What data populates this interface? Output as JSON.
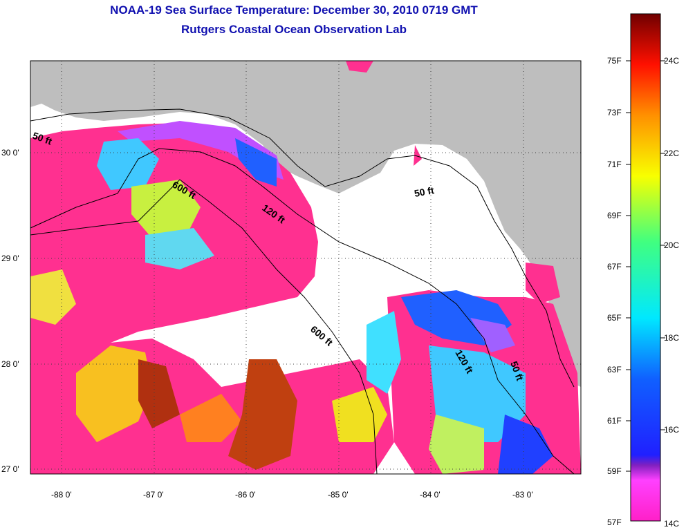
{
  "title": "NOAA-19 Sea Surface Temperature:  December 30, 2010 0719 GMT",
  "subtitle": "Rutgers Coastal Ocean Observation Lab",
  "map": {
    "lon_ticks": [
      "-88 0'",
      "-87 0'",
      "-86 0'",
      "-85 0'",
      "-84 0'",
      "-83 0'"
    ],
    "lat_ticks": [
      "30 0'",
      "29 0'",
      "28 0'",
      "27 0'"
    ],
    "contour_labels": [
      "50 ft",
      "600 ft",
      "120 ft",
      "50 ft",
      "600 ft",
      "120 ft",
      "50 ft"
    ]
  },
  "colorbar": {
    "fahrenheit_labels": [
      "75F",
      "73F",
      "71F",
      "69F",
      "67F",
      "65F",
      "63F",
      "61F",
      "59F",
      "57F"
    ],
    "celsius_labels": [
      "24C",
      "22C",
      "20C",
      "18C",
      "16C",
      "14C"
    ]
  },
  "colors": {
    "title": "#1010b0",
    "land": "#bebebe",
    "cloud": "#ffffff"
  }
}
